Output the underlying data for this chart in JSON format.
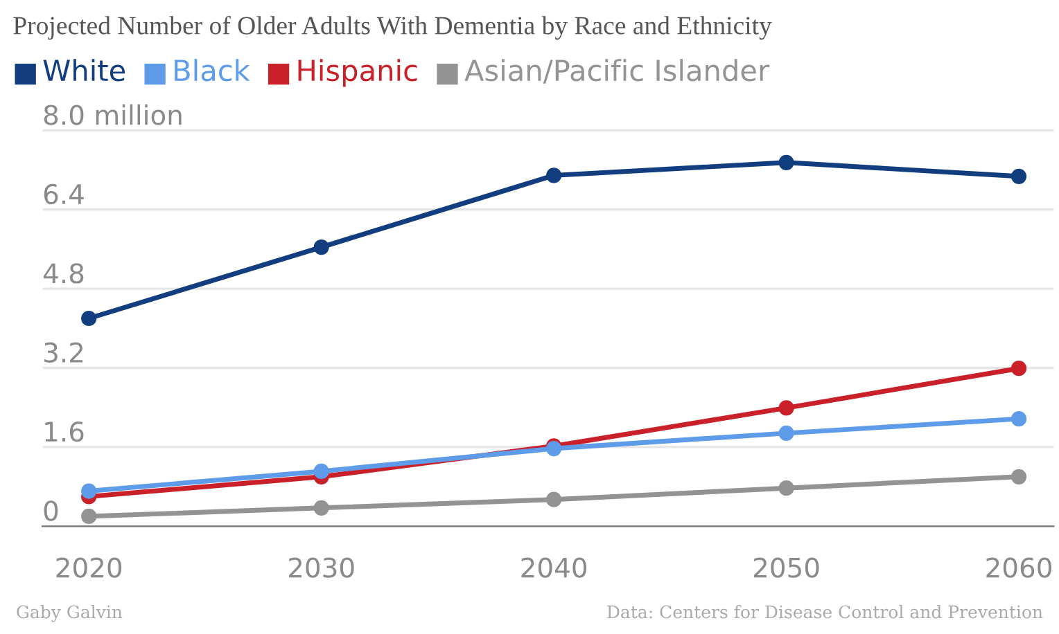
{
  "chart_data": {
    "type": "line",
    "title": "Projected Number of Older Adults With Dementia by Race and Ethnicity",
    "x": [
      2020,
      2030,
      2040,
      2050,
      2060
    ],
    "series": [
      {
        "name": "White",
        "color": "#123d7f",
        "values": [
          4.2,
          5.64,
          7.09,
          7.35,
          7.07
        ]
      },
      {
        "name": "Black",
        "color": "#5e9be8",
        "values": [
          0.71,
          1.11,
          1.57,
          1.88,
          2.17
        ]
      },
      {
        "name": "Hispanic",
        "color": "#c9202a",
        "values": [
          0.6,
          1.0,
          1.62,
          2.39,
          3.19
        ]
      },
      {
        "name": "Asian/Pacific Islander",
        "color": "#939393",
        "values": [
          0.2,
          0.37,
          0.54,
          0.77,
          1.0
        ]
      }
    ],
    "xlim": [
      2018,
      2061.5
    ],
    "xticks": [
      2020,
      2030,
      2040,
      2050,
      2060
    ],
    "ylim": [
      0,
      8.2
    ],
    "yticks": [
      0,
      1.6,
      3.2,
      4.8,
      6.4,
      {
        "value": 8.0,
        "label": "8.0 million"
      }
    ],
    "grid": "y",
    "legend": "top left",
    "marker": "circle",
    "line_style": "solid",
    "annotations": [
      "Gaby Galvin",
      "Data: Centers for Disease Control and Prevention"
    ]
  }
}
